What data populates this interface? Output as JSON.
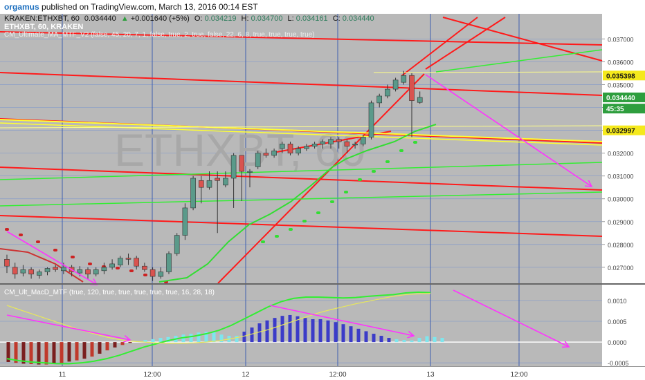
{
  "header": {
    "user": "orgamus",
    "published_text": "published on TradingView.com, March 13, 2016 00:14 EST"
  },
  "main_legend": {
    "prefix": "KRAKEN:ETHXBT, 60",
    "price": "0.034440",
    "change": "+0.001640 (+5%)",
    "o_label": "O:",
    "o": "0.034219",
    "h_label": "H:",
    "h": "0.034700",
    "l_label": "L:",
    "l": "0.034161",
    "c_label": "C:",
    "c": "0.034440",
    "symbol_line": "ETHXBT, 60, KRAKEN",
    "indicator_line": "CM_Ultimate_MA_MTF_V2 (false, 45, 20, 7, 1, false, true, 2, true, false, 22, 6, 8, true, true, true, true)"
  },
  "watermark": "ETHXBT, 60",
  "macd_legend": "CM_Ult_MacD_MTF (true, 120, true, true, true, true, true, 16, 28, 18)",
  "colors": {
    "background": "#b9b9b9",
    "grid": "#8da0c8",
    "vline": "#3f5fb0",
    "trend_red": "#ff1a1a",
    "support_yellow": "#ffff33",
    "channel_green": "#33ee33",
    "arrow_magenta": "#ff33ff",
    "candle_up": "#5a9a8a",
    "candle_down": "#d9534f",
    "price_label_green": "#2e9e3e",
    "price_label_yellow": "#f5e91c"
  },
  "chart_data": [
    {
      "type": "candlestick",
      "title": "ETHXBT, 60, KRAKEN",
      "y_ticks": [
        "0.037000",
        "0.036000",
        "0.035000",
        "0.034000",
        "0.033000",
        "0.032000",
        "0.031000",
        "0.030000",
        "0.029000",
        "0.028000",
        "0.027000"
      ],
      "ylim": [
        0.0263,
        0.0381
      ],
      "price_labels": [
        {
          "value": 0.035398,
          "text": "0.035398",
          "color": "yellow"
        },
        {
          "value": 0.03444,
          "text": "0.034440",
          "color": "green"
        },
        {
          "value": 0.03395,
          "text": "45:35",
          "color": "green"
        },
        {
          "value": 0.032997,
          "text": "0.032997",
          "color": "yellow"
        }
      ],
      "candles": [
        {
          "o": 0.02735,
          "c": 0.02705,
          "h": 0.02755,
          "l": 0.02675
        },
        {
          "o": 0.027,
          "c": 0.0267,
          "h": 0.0272,
          "l": 0.0265
        },
        {
          "o": 0.02675,
          "c": 0.0269,
          "h": 0.0271,
          "l": 0.0266
        },
        {
          "o": 0.0269,
          "c": 0.0267,
          "h": 0.027,
          "l": 0.0265
        },
        {
          "o": 0.02665,
          "c": 0.0268,
          "h": 0.0269,
          "l": 0.0265
        },
        {
          "o": 0.0268,
          "c": 0.02695,
          "h": 0.027,
          "l": 0.02665
        },
        {
          "o": 0.027,
          "c": 0.0269,
          "h": 0.0271,
          "l": 0.0268
        },
        {
          "o": 0.02685,
          "c": 0.027,
          "h": 0.0272,
          "l": 0.0267
        },
        {
          "o": 0.027,
          "c": 0.0268,
          "h": 0.0271,
          "l": 0.0266
        },
        {
          "o": 0.02675,
          "c": 0.0269,
          "h": 0.02705,
          "l": 0.0266
        },
        {
          "o": 0.0269,
          "c": 0.0267,
          "h": 0.027,
          "l": 0.0265
        },
        {
          "o": 0.0267,
          "c": 0.0269,
          "h": 0.027,
          "l": 0.0266
        },
        {
          "o": 0.02685,
          "c": 0.027,
          "h": 0.0272,
          "l": 0.0267
        },
        {
          "o": 0.027,
          "c": 0.02715,
          "h": 0.02735,
          "l": 0.0269
        },
        {
          "o": 0.0271,
          "c": 0.0274,
          "h": 0.0275,
          "l": 0.027
        },
        {
          "o": 0.0274,
          "c": 0.02735,
          "h": 0.0276,
          "l": 0.0271
        },
        {
          "o": 0.0274,
          "c": 0.02705,
          "h": 0.0275,
          "l": 0.0269
        },
        {
          "o": 0.02705,
          "c": 0.0269,
          "h": 0.0272,
          "l": 0.0268
        },
        {
          "o": 0.0269,
          "c": 0.0266,
          "h": 0.027,
          "l": 0.0264
        },
        {
          "o": 0.0266,
          "c": 0.0268,
          "h": 0.027,
          "l": 0.0265
        },
        {
          "o": 0.0268,
          "c": 0.0276,
          "h": 0.0277,
          "l": 0.0267
        },
        {
          "o": 0.0276,
          "c": 0.0284,
          "h": 0.0285,
          "l": 0.0275
        },
        {
          "o": 0.0284,
          "c": 0.0296,
          "h": 0.0298,
          "l": 0.0282
        },
        {
          "o": 0.0296,
          "c": 0.0309,
          "h": 0.031,
          "l": 0.0295
        },
        {
          "o": 0.0308,
          "c": 0.0305,
          "h": 0.031,
          "l": 0.0298
        },
        {
          "o": 0.0305,
          "c": 0.0308,
          "h": 0.0312,
          "l": 0.0304
        },
        {
          "o": 0.0309,
          "c": 0.0308,
          "h": 0.0312,
          "l": 0.0285
        },
        {
          "o": 0.0306,
          "c": 0.0309,
          "h": 0.0312,
          "l": 0.0305
        },
        {
          "o": 0.0309,
          "c": 0.0319,
          "h": 0.032,
          "l": 0.0296
        },
        {
          "o": 0.0319,
          "c": 0.0312,
          "h": 0.0319,
          "l": 0.0299
        },
        {
          "o": 0.0312,
          "c": 0.0312,
          "h": 0.0313,
          "l": 0.0305
        },
        {
          "o": 0.0314,
          "c": 0.032,
          "h": 0.0321,
          "l": 0.0313
        },
        {
          "o": 0.032,
          "c": 0.0319,
          "h": 0.0322,
          "l": 0.0318
        },
        {
          "o": 0.0319,
          "c": 0.0321,
          "h": 0.0322,
          "l": 0.0318
        },
        {
          "o": 0.0322,
          "c": 0.0324,
          "h": 0.0325,
          "l": 0.032
        },
        {
          "o": 0.0324,
          "c": 0.032,
          "h": 0.0325,
          "l": 0.0319
        },
        {
          "o": 0.032,
          "c": 0.0322,
          "h": 0.0323,
          "l": 0.0319
        },
        {
          "o": 0.0322,
          "c": 0.0323,
          "h": 0.0324,
          "l": 0.0321
        },
        {
          "o": 0.0323,
          "c": 0.0324,
          "h": 0.0325,
          "l": 0.0322
        },
        {
          "o": 0.0324,
          "c": 0.0325,
          "h": 0.0326,
          "l": 0.0322
        },
        {
          "o": 0.0324,
          "c": 0.0326,
          "h": 0.0327,
          "l": 0.0322
        },
        {
          "o": 0.0326,
          "c": 0.0325,
          "h": 0.0327,
          "l": 0.0322
        },
        {
          "o": 0.0325,
          "c": 0.0323,
          "h": 0.0326,
          "l": 0.032
        },
        {
          "o": 0.0324,
          "c": 0.0324,
          "h": 0.0325,
          "l": 0.0322
        },
        {
          "o": 0.0324,
          "c": 0.0327,
          "h": 0.0328,
          "l": 0.0323
        },
        {
          "o": 0.0327,
          "c": 0.0342,
          "h": 0.0343,
          "l": 0.0326
        },
        {
          "o": 0.0342,
          "c": 0.0345,
          "h": 0.0346,
          "l": 0.034
        },
        {
          "o": 0.0345,
          "c": 0.0348,
          "h": 0.035,
          "l": 0.0344
        },
        {
          "o": 0.0348,
          "c": 0.0352,
          "h": 0.0353,
          "l": 0.0347
        },
        {
          "o": 0.0351,
          "c": 0.0354,
          "h": 0.0356,
          "l": 0.035
        },
        {
          "o": 0.0354,
          "c": 0.0343,
          "h": 0.0355,
          "l": 0.0327
        },
        {
          "o": 0.03422,
          "c": 0.03444,
          "h": 0.0347,
          "l": 0.03416
        }
      ]
    },
    {
      "type": "bar",
      "title": "CM_Ult_MacD_MTF (true, 120, true, true, true, true, true, 16, 28, 18)",
      "y_ticks": [
        "0.0010",
        "0.0005",
        "0.0000",
        "-0.0005"
      ],
      "ylim": [
        -0.00058,
        0.00138
      ],
      "histogram": [
        -0.00048,
        -0.0005,
        -0.00052,
        -0.00053,
        -0.00054,
        -0.00054,
        -0.00052,
        -0.0005,
        -0.00047,
        -0.00044,
        -0.0004,
        -0.00035,
        -0.00028,
        -0.0002,
        -0.00013,
        -7e-05,
        -2e-05,
        2e-05,
        5e-05,
        7e-05,
        0.0001,
        0.00012,
        0.00015,
        0.00018,
        0.0002,
        0.00023,
        0.00025,
        0.00024,
        0.00018,
        0.00015,
        0.00015,
        0.00025,
        0.00035,
        0.00045,
        0.00052,
        0.00058,
        0.00063,
        0.00065,
        0.00062,
        0.00058,
        0.00055,
        0.00055,
        0.00052,
        0.00048,
        0.00043,
        0.00038,
        0.00032,
        0.00026,
        0.0002,
        0.00015,
        0.0001,
        7e-05,
        5e-05,
        4e-05,
        0.0001,
        0.00014,
        0.00012,
        0.0001
      ],
      "macd_line": [
        -0.0004,
        -0.00045,
        -0.00048,
        -0.0005,
        -0.00052,
        -0.00052,
        -0.0005,
        -0.00046,
        -0.0004,
        -0.00032,
        -0.00022,
        -0.00012,
        -4e-05,
        4e-05,
        0.0001,
        0.00014,
        0.0002,
        0.00028,
        0.0004,
        0.00055,
        0.0007,
        0.00085,
        0.00097,
        0.00105,
        0.00108,
        0.00108,
        0.00107,
        0.00106,
        0.00107,
        0.0011,
        0.00112,
        0.00114,
        0.00118,
        0.0012,
        0.00119
      ],
      "signal_line": [
        0.00088,
        0.00078,
        0.00068,
        0.00058,
        0.00048,
        0.00038,
        0.00028,
        0.0002,
        0.00012,
        6e-05,
        2e-05,
        0.0,
        -2e-05,
        -3e-05,
        -3e-05,
        -2e-05,
        0.0,
        3e-05,
        8e-05,
        0.00014,
        0.00022,
        0.0003,
        0.0004,
        0.0005,
        0.0006,
        0.0007,
        0.00078,
        0.00085,
        0.00092,
        0.00098,
        0.00104,
        0.0011,
        0.00114,
        0.00116,
        0.00117
      ]
    }
  ],
  "x_axis": {
    "ticks": [
      "11",
      "12:00",
      "12",
      "12:00",
      "13",
      "12:00"
    ]
  }
}
